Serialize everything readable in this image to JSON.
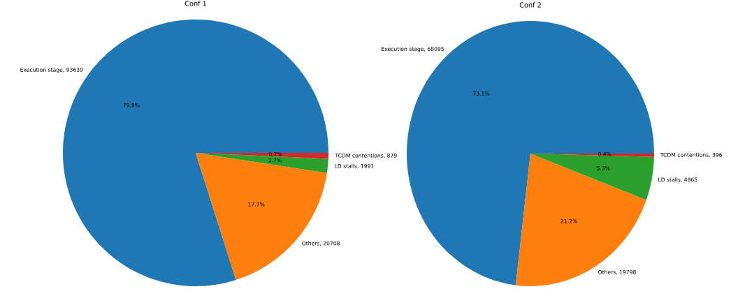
{
  "chart_data": [
    {
      "type": "pie",
      "title": "Conf 1",
      "categories": [
        "Execution stage, 93639",
        "Others, 20708",
        "LD stalls, 1991",
        "TCDM contentions, 879"
      ],
      "values": [
        79.9,
        17.7,
        1.7,
        0.7
      ],
      "colors": [
        "#1f77b4",
        "#ff7f0e",
        "#2ca02c",
        "#d62728"
      ],
      "value_labels": [
        "79.9%",
        "17.7%",
        "1.7%",
        "0.7%"
      ]
    },
    {
      "type": "pie",
      "title": "Conf 2",
      "categories": [
        "Execution stage, 68095",
        "Others, 19798",
        "LD stalls, 4965",
        "TCDM contentions, 396"
      ],
      "values": [
        73.1,
        21.2,
        5.3,
        0.4
      ],
      "colors": [
        "#1f77b4",
        "#ff7f0e",
        "#2ca02c",
        "#d62728"
      ],
      "value_labels": [
        "73.1%",
        "21.2%",
        "5.3%",
        "0.4%"
      ]
    }
  ]
}
